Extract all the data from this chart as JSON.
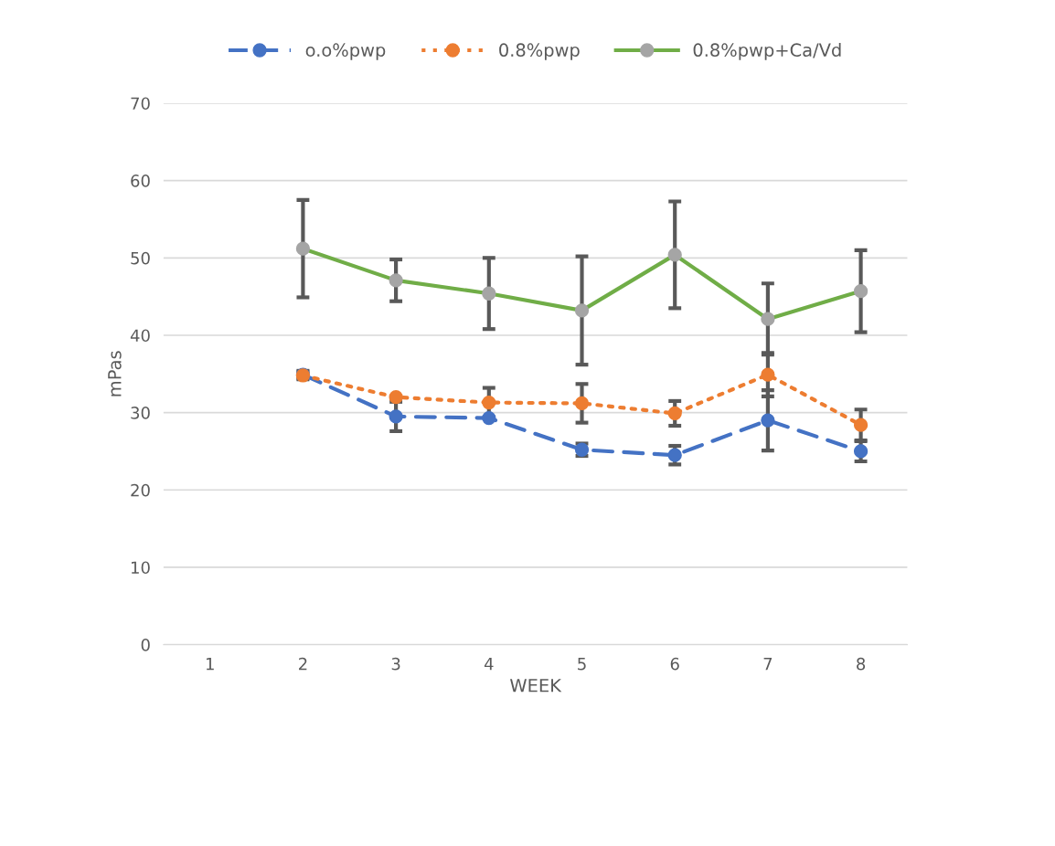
{
  "chart_data": {
    "type": "line",
    "xlabel": "WEEK",
    "ylabel": "mPas",
    "categories": [
      "1",
      "2",
      "3",
      "4",
      "5",
      "6",
      "7",
      "8"
    ],
    "ylim": [
      0,
      70
    ],
    "yticks": [
      0,
      10,
      20,
      30,
      40,
      50,
      60,
      70
    ],
    "grid": "y",
    "legend": "top",
    "marker": "circle",
    "series": [
      {
        "name": "o.o%pwp",
        "color": "#4472c4",
        "line_style": "dashed",
        "values": [
          null,
          34.9,
          29.5,
          29.3,
          25.2,
          24.5,
          29.0,
          25.0
        ],
        "errors": [
          null,
          0.5,
          1.9,
          null,
          0.8,
          1.2,
          3.9,
          1.3
        ]
      },
      {
        "name": "0.8%pwp",
        "color": "#ed7d31",
        "line_style": "dotted",
        "values": [
          null,
          34.8,
          32.0,
          31.3,
          31.2,
          29.9,
          34.9,
          28.4
        ],
        "errors": [
          null,
          0.5,
          null,
          1.9,
          2.5,
          1.6,
          2.8,
          2.0
        ]
      },
      {
        "name": "0.8%pwp+Ca/Vd",
        "color": "#70ad47",
        "line_style": "solid",
        "colors": [
          "#a5a5a5",
          "#a5a5a5",
          "#a5a5a5",
          "#a5a5a5",
          "#a5a5a5",
          "#a5a5a5",
          "#a5a5a5",
          "#a5a5a5"
        ],
        "values": [
          null,
          51.2,
          47.1,
          45.4,
          43.2,
          50.4,
          42.1,
          45.7
        ],
        "errors": [
          null,
          6.3,
          2.7,
          4.6,
          7.0,
          6.9,
          4.6,
          5.3
        ]
      }
    ]
  }
}
